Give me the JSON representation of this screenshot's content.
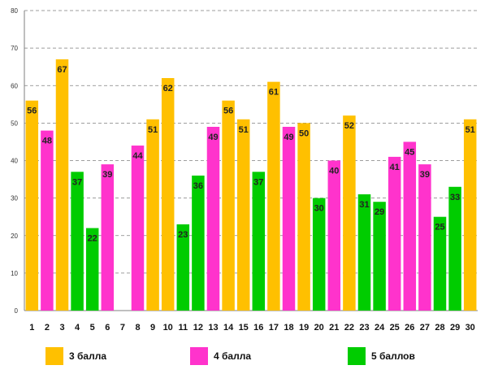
{
  "chart_data": {
    "type": "bar",
    "title": "",
    "xlabel": "",
    "ylabel": "",
    "ylim": [
      0,
      80
    ],
    "yticks": [
      0,
      10,
      20,
      30,
      40,
      50,
      60,
      70,
      80
    ],
    "grid": true,
    "legend_position": "bottom",
    "categories": [
      "1",
      "2",
      "3",
      "4",
      "5",
      "6",
      "7",
      "8",
      "9",
      "10",
      "11",
      "12",
      "13",
      "14",
      "15",
      "16",
      "17",
      "18",
      "19",
      "20",
      "21",
      "22",
      "23",
      "24",
      "25",
      "26",
      "27",
      "28",
      "29",
      "30"
    ],
    "series": [
      {
        "name": "3 балла",
        "color": "#FFC000",
        "values": [
          56,
          null,
          67,
          null,
          null,
          null,
          null,
          null,
          51,
          62,
          null,
          null,
          null,
          56,
          51,
          null,
          61,
          null,
          50,
          null,
          null,
          52,
          null,
          null,
          null,
          null,
          null,
          null,
          null,
          51
        ]
      },
      {
        "name": "4 балла",
        "color": "#FF33CC",
        "values": [
          null,
          48,
          null,
          null,
          null,
          39,
          null,
          44,
          null,
          null,
          null,
          null,
          49,
          null,
          null,
          null,
          null,
          49,
          null,
          null,
          40,
          null,
          null,
          null,
          41,
          45,
          39,
          null,
          null,
          null
        ]
      },
      {
        "name": "5 баллов",
        "color": "#00CC00",
        "values": [
          null,
          null,
          null,
          37,
          22,
          null,
          null,
          null,
          null,
          null,
          23,
          36,
          null,
          null,
          null,
          37,
          null,
          null,
          null,
          30,
          null,
          null,
          31,
          29,
          null,
          null,
          null,
          25,
          33,
          null
        ]
      }
    ]
  }
}
